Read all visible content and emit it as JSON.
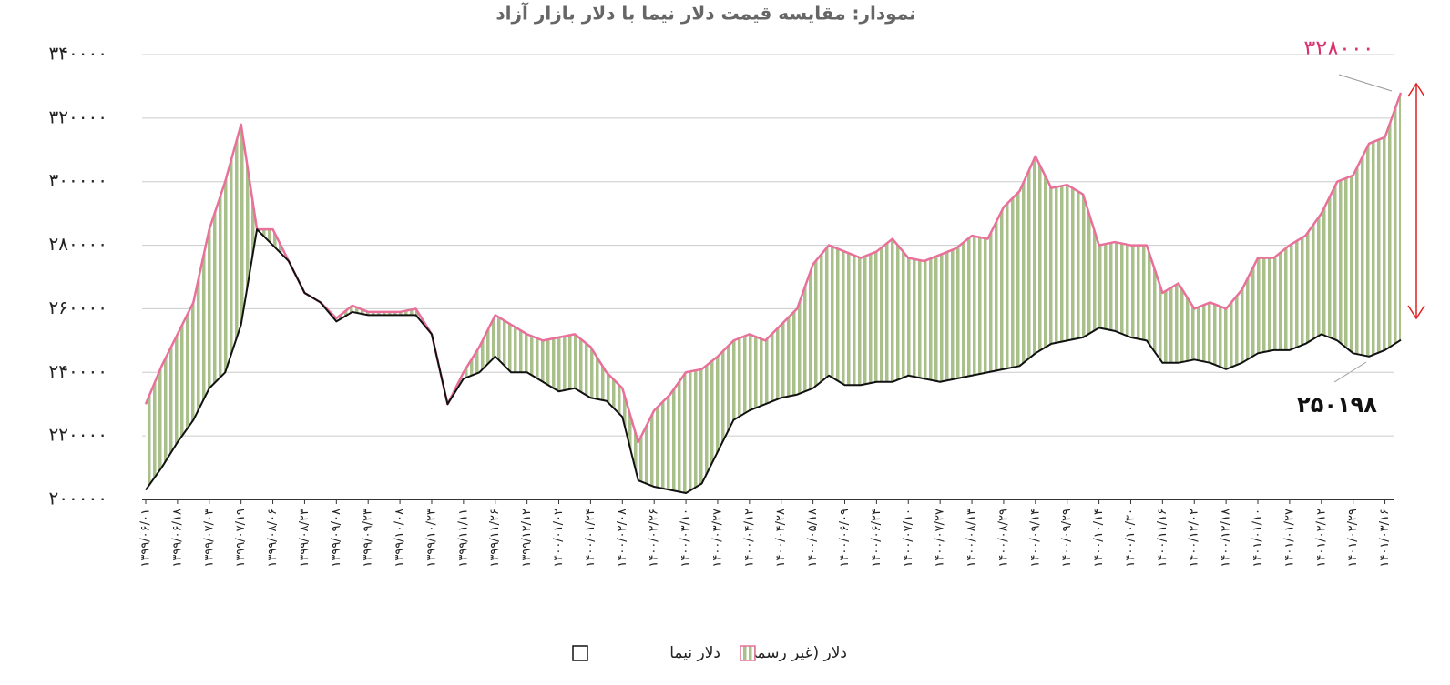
{
  "chart_data": {
    "type": "line",
    "title": "نمودار: مقایسه قیمت دلار نیما با دلار بازار آزاد",
    "categories": [
      "۱۳۹۹/۰۶/۰۱",
      null,
      "۱۳۹۹/۰۶/۱۸",
      null,
      "۱۳۹۹/۰۷/۰۳",
      null,
      "۱۳۹۹/۰۷/۱۹",
      null,
      "۱۳۹۹/۰۸/۰۶",
      null,
      "۱۳۹۹/۰۸/۲۳",
      null,
      "۱۳۹۹/۰۹/۰۸",
      null,
      "۱۳۹۹/۰۹/۲۳",
      null,
      "۱۳۹۹/۱۰/۰۸",
      null,
      "۱۳۹۹/۱۰/۲۳",
      null,
      "۱۳۹۹/۱۱/۱۱",
      null,
      "۱۳۹۹/۱۱/۲۶",
      null,
      "۱۳۹۹/۱۲/۱۲",
      null,
      "۱۴۰۰/۰۱/۰۲",
      null,
      "۱۴۰۰/۰۱/۲۴",
      null,
      "۱۴۰۰/۰۲/۰۸",
      null,
      "۱۴۰۰/۰۲/۲۶",
      null,
      "۱۴۰۰/۰۳/۱۰",
      null,
      "۱۴۰۰/۰۳/۲۷",
      null,
      "۱۴۰۰/۰۴/۱۲",
      null,
      "۱۴۰۰/۰۴/۲۸",
      null,
      "۱۴۰۰/۰۵/۱۸",
      null,
      "۱۴۰۰/۰۶/۰۹",
      null,
      "۱۴۰۰/۰۶/۲۴",
      null,
      "۱۴۰۰/۰۷/۱۰",
      null,
      "۱۴۰۰/۰۷/۲۷",
      null,
      "۱۴۰۰/۰۸/۱۳",
      null,
      "۱۴۰۰/۰۸/۲۹",
      null,
      "۱۴۰۰/۰۹/۱۴",
      null,
      "۱۴۰۰/۰۹/۲۹",
      null,
      "۱۴۰۰/۱۰/۱۴",
      null,
      "۱۴۰۰/۱۰/۳۰",
      null,
      "۱۴۰۰/۱۱/۱۶",
      null,
      "۱۴۰۰/۱۲/۰۲",
      null,
      "۱۴۰۰/۱۲/۱۸",
      null,
      "۱۴۰۱/۰۱/۱۰",
      null,
      "۱۴۰۱/۰۱/۲۷",
      null,
      "۱۴۰۱/۰۲/۱۲",
      null,
      "۱۴۰۱/۰۲/۲۹",
      null,
      "۱۴۰۱/۰۳/۱۶",
      null
    ],
    "series": [
      {
        "name": "دلار (غیر رسمی)",
        "color": "#e8709a",
        "fill": "#a9c08a",
        "values": [
          230000,
          242000,
          252000,
          262000,
          285000,
          300000,
          318000,
          285000,
          285000,
          275000,
          265000,
          262000,
          257000,
          261000,
          259000,
          259000,
          259000,
          260000,
          252000,
          230000,
          240000,
          248000,
          258000,
          255000,
          252000,
          250000,
          251000,
          252000,
          248000,
          240000,
          235000,
          218000,
          228000,
          233000,
          240000,
          241000,
          245000,
          250000,
          252000,
          250000,
          255000,
          260000,
          274000,
          280000,
          278000,
          276000,
          278000,
          282000,
          276000,
          275000,
          277000,
          279000,
          283000,
          282000,
          292000,
          297000,
          308000,
          298000,
          299000,
          296000,
          280000,
          281000,
          280000,
          280000,
          265000,
          268000,
          260000,
          262000,
          260000,
          266000,
          276000,
          276000,
          280000,
          283000,
          290000,
          300000,
          302000,
          312000,
          314000,
          328000
        ]
      },
      {
        "name": "دلار نیما",
        "color": "#111111",
        "values": [
          203000,
          210000,
          218000,
          225000,
          235000,
          240000,
          255000,
          285000,
          280000,
          275000,
          265000,
          262000,
          256000,
          259000,
          258000,
          258000,
          258000,
          258000,
          252000,
          230000,
          238000,
          240000,
          245000,
          240000,
          240000,
          237000,
          234000,
          235000,
          232000,
          231000,
          226000,
          206000,
          204000,
          203000,
          202000,
          205000,
          215000,
          225000,
          228000,
          230000,
          232000,
          233000,
          235000,
          239000,
          236000,
          236000,
          237000,
          237000,
          239000,
          238000,
          237000,
          238000,
          239000,
          240000,
          241000,
          242000,
          246000,
          249000,
          250000,
          251000,
          254000,
          253000,
          251000,
          250000,
          243000,
          243000,
          244000,
          243000,
          241000,
          243000,
          246000,
          247000,
          247000,
          249000,
          252000,
          250000,
          246000,
          245000,
          247000,
          250198
        ]
      }
    ],
    "annotations": [
      "۳۲۸۰۰۰",
      "۲۵۰۱۹۸"
    ],
    "ylim": [
      200000,
      340000
    ],
    "yticks": [
      {
        "value": 200000,
        "label": "۲۰۰۰۰۰"
      },
      {
        "value": 220000,
        "label": "۲۲۰۰۰۰"
      },
      {
        "value": 240000,
        "label": "۲۴۰۰۰۰"
      },
      {
        "value": 260000,
        "label": "۲۶۰۰۰۰"
      },
      {
        "value": 280000,
        "label": "۲۸۰۰۰۰"
      },
      {
        "value": 300000,
        "label": "۳۰۰۰۰۰"
      },
      {
        "value": 320000,
        "label": "۳۲۰۰۰۰"
      },
      {
        "value": 340000,
        "label": "۳۴۰۰۰۰"
      }
    ],
    "grid": true
  }
}
